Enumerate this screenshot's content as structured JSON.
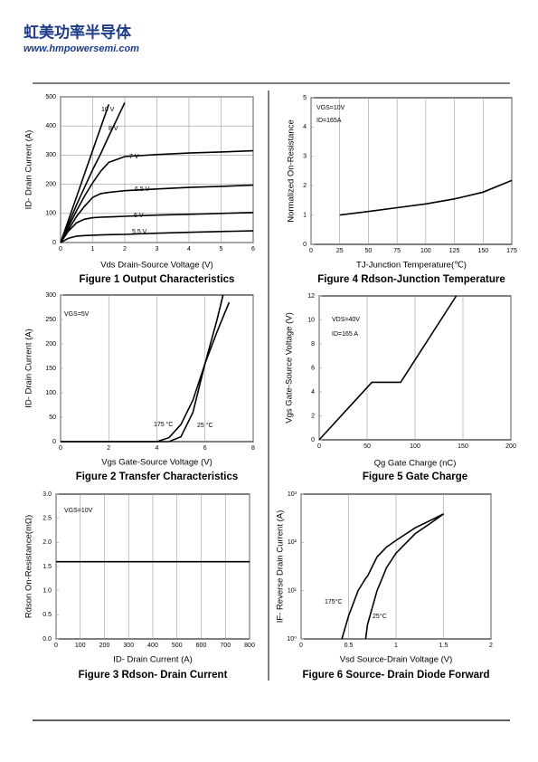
{
  "header": {
    "company": "虹美功率半导体",
    "website": "www.hmpowersemi.com"
  },
  "chart_data": [
    {
      "type": "line",
      "title": "Figure 1 Output Characteristics",
      "xlabel": "Vds Drain-Source Voltage (V)",
      "ylabel": "ID- Drain Current (A)",
      "x": [
        0,
        0.25,
        0.5,
        0.75,
        1,
        1.25,
        1.5,
        2,
        3,
        4,
        5,
        6
      ],
      "series": [
        {
          "name": "10 V",
          "color": "#000000",
          "values": [
            0,
            79,
            158,
            237,
            316,
            395,
            474,
            null,
            null,
            null,
            null,
            null
          ]
        },
        {
          "name": "8 V",
          "color": "#000000",
          "values": [
            0,
            65,
            130,
            190,
            250,
            305,
            365,
            480,
            null,
            null,
            null,
            null
          ]
        },
        {
          "name": "7 V",
          "color": "#000000",
          "values": [
            0,
            55,
            110,
            160,
            205,
            245,
            275,
            295,
            302,
            307,
            311,
            315
          ]
        },
        {
          "name": "6.5 V",
          "color": "#000000",
          "values": [
            0,
            45,
            90,
            125,
            155,
            168,
            172,
            178,
            184,
            189,
            193,
            197
          ]
        },
        {
          "name": "6 V",
          "color": "#000000",
          "values": [
            0,
            40,
            68,
            80,
            85,
            87,
            88,
            90,
            94,
            97,
            100,
            103
          ]
        },
        {
          "name": "5.5 V",
          "color": "#000000",
          "values": [
            0,
            15,
            22,
            24,
            25,
            26,
            27,
            28,
            32,
            35,
            38,
            40
          ]
        }
      ],
      "xlim": [
        0,
        6
      ],
      "ylim": [
        0,
        500
      ],
      "xticks": [
        0,
        1,
        2,
        3,
        4,
        5,
        6
      ],
      "yticks": [
        0,
        100,
        200,
        300,
        400,
        500
      ],
      "grid": "both",
      "annotations": []
    },
    {
      "type": "line",
      "title": "Figure 4 Rdson-Junction Temperature",
      "xlabel": "TJ-Junction Temperature(℃)",
      "ylabel": "Normalized On-Resistance",
      "x": [
        25,
        50,
        75,
        100,
        125,
        150,
        175
      ],
      "series": [
        {
          "name": "Rdson",
          "color": "#000000",
          "values": [
            1.0,
            1.12,
            1.25,
            1.38,
            1.55,
            1.78,
            2.18
          ]
        }
      ],
      "xlim": [
        0,
        175
      ],
      "ylim": [
        0,
        5
      ],
      "xticks": [
        0,
        25,
        50,
        75,
        100,
        125,
        150,
        175
      ],
      "yticks": [
        0,
        1,
        2,
        3,
        4,
        5
      ],
      "grid": "x",
      "annotations": [
        "VGS=10V",
        "ID=165A"
      ]
    },
    {
      "type": "line",
      "title": "Figure 2 Transfer Characteristics",
      "xlabel": "Vgs Gate-Source Voltage (V)",
      "ylabel": "ID- Drain Current (A)",
      "x": [
        0,
        4,
        4.5,
        5,
        5.5,
        6,
        6.5,
        6.75,
        7
      ],
      "series": [
        {
          "name": "175 °C",
          "color": "#000000",
          "values": [
            0,
            0,
            8,
            35,
            85,
            160,
            225,
            255,
            285
          ]
        },
        {
          "name": "25 °C",
          "color": "#000000",
          "values": [
            0,
            0,
            0,
            10,
            60,
            160,
            250,
            300,
            null
          ]
        }
      ],
      "xlim": [
        0,
        8
      ],
      "ylim": [
        0,
        300
      ],
      "xticks": [
        0,
        2,
        4,
        6,
        8
      ],
      "yticks": [
        0,
        50,
        100,
        150,
        200,
        250,
        300
      ],
      "grid": "x",
      "annotations": [
        "VGS=5V"
      ]
    },
    {
      "type": "line",
      "title": "Figure 5 Gate Charge",
      "xlabel": "Qg Gate Charge (nC)",
      "ylabel": "Vgs Gate-Source Voltage (V)",
      "x": [
        0,
        55,
        85,
        143
      ],
      "series": [
        {
          "name": "Vgs",
          "color": "#000000",
          "values": [
            0,
            4.8,
            4.8,
            12
          ]
        }
      ],
      "xlim": [
        0,
        200
      ],
      "ylim": [
        0,
        12
      ],
      "xticks": [
        0,
        50,
        100,
        150,
        200
      ],
      "yticks": [
        0,
        2,
        4,
        6,
        8,
        10,
        12
      ],
      "grid": "x",
      "annotations": [
        "VDS=40V",
        "ID=165 A"
      ]
    },
    {
      "type": "line",
      "title": "Figure 3 Rdson- Drain Current",
      "xlabel": "ID- Drain Current (A)",
      "ylabel": "Rdson On-Resistance(mΩ)",
      "x": [
        0,
        800
      ],
      "series": [
        {
          "name": "Rdson",
          "color": "#000000",
          "values": [
            1.6,
            1.6
          ]
        }
      ],
      "xlim": [
        0,
        800
      ],
      "ylim": [
        0,
        3
      ],
      "xticks": [
        0,
        100,
        200,
        300,
        400,
        500,
        600,
        700,
        800
      ],
      "yticks": [
        {
          "value": 0,
          "label": "0.0"
        },
        0.5,
        {
          "value": 1,
          "label": "1.0"
        },
        1.5,
        {
          "value": 2,
          "label": "2.0"
        },
        2.5,
        {
          "value": 3,
          "label": "3.0"
        }
      ],
      "grid": "x",
      "annotations": [
        "VGS=10V"
      ]
    },
    {
      "type": "line",
      "title": "Figure 6 Source- Drain Diode Forward",
      "xlabel": "Vsd Source-Drain Voltage (V)",
      "ylabel": "IF- Reverse Drain Current (A)",
      "x": [
        0.43,
        0.5,
        0.6,
        0.68,
        0.7,
        0.8,
        0.9,
        1.0,
        1.2,
        1.4,
        1.5
      ],
      "series": [
        {
          "name": "175°C",
          "color": "#000000",
          "values": [
            1,
            3,
            10,
            18,
            20,
            50,
            80,
            110,
            200,
            310,
            390
          ]
        },
        {
          "name": "25°C",
          "color": "#000000",
          "values": [
            null,
            null,
            null,
            1,
            2,
            10,
            30,
            60,
            150,
            280,
            390
          ]
        }
      ],
      "xlim": [
        0,
        2
      ],
      "ylim": [
        1,
        1000
      ],
      "yscale": "log",
      "xticks": [
        0,
        0.5,
        1,
        1.5,
        2
      ],
      "yticks": [
        {
          "value": 1,
          "label": "10⁰"
        },
        {
          "value": 10,
          "label": "10¹"
        },
        {
          "value": 100,
          "label": "10²"
        },
        {
          "value": 1000,
          "label": "10³"
        }
      ],
      "grid": "x",
      "annotations": []
    }
  ]
}
